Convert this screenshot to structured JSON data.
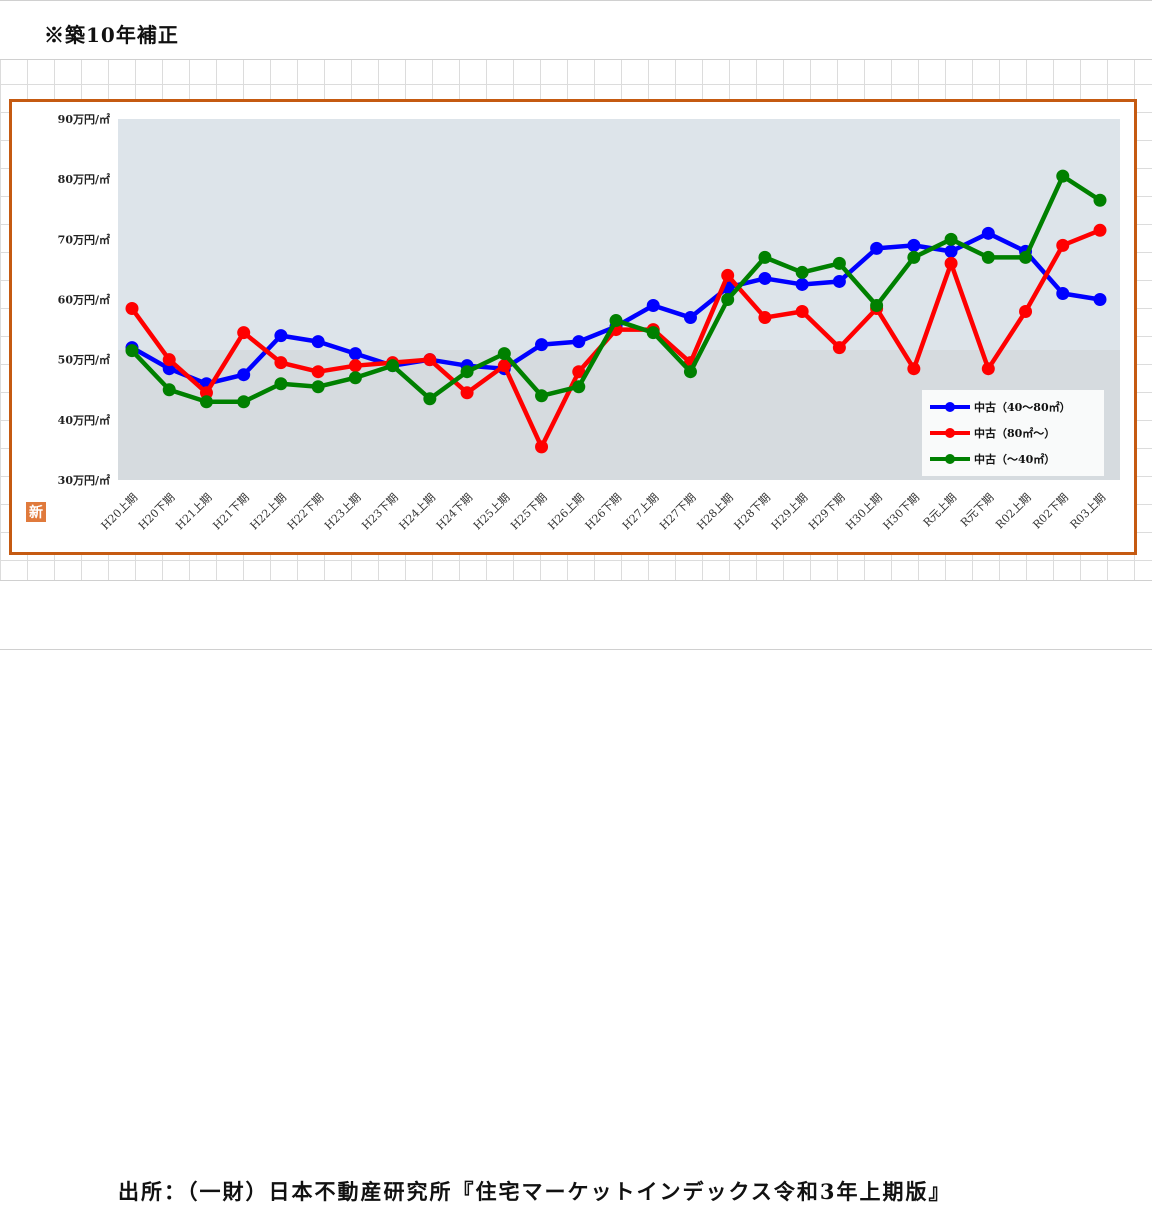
{
  "header": {
    "note": "※築10年補正"
  },
  "footer": {
    "source": "出所：（一財）日本不動産研究所『住宅マーケットインデックス令和3年上期版』"
  },
  "logo": {
    "text": "新"
  },
  "colors": {
    "frame": "#c55a11",
    "plot_bg": "#dde4ea"
  },
  "chart_data": {
    "type": "line",
    "title": "",
    "xlabel": "",
    "ylabel": "",
    "ylim": [
      30,
      90
    ],
    "yticks": [
      30,
      40,
      50,
      60,
      70,
      80,
      90
    ],
    "ytick_labels": [
      "30万円/㎡",
      "40万円/㎡",
      "50万円/㎡",
      "60万円/㎡",
      "70万円/㎡",
      "80万円/㎡",
      "90万円/㎡"
    ],
    "grid": false,
    "legend_position": "bottom-right",
    "categories": [
      "H20上期",
      "H20下期",
      "H21上期",
      "H21下期",
      "H22上期",
      "H22下期",
      "H23上期",
      "H23下期",
      "H24上期",
      "H24下期",
      "H25上期",
      "H25下期",
      "H26上期",
      "H26下期",
      "H27上期",
      "H27下期",
      "H28上期",
      "H28下期",
      "H29上期",
      "H29下期",
      "H30上期",
      "H30下期",
      "R元上期",
      "R元下期",
      "R02上期",
      "R02下期",
      "R03上期"
    ],
    "series": [
      {
        "name": "中古（40～80㎡）",
        "color": "#0000ff",
        "values": [
          52,
          48.5,
          46,
          47.5,
          54,
          53,
          51,
          49,
          50,
          49,
          48.5,
          52.5,
          53,
          55.5,
          59,
          57,
          62,
          63.5,
          62.5,
          63,
          68.5,
          69,
          68,
          71,
          68,
          61,
          60
        ]
      },
      {
        "name": "中古（80㎡～）",
        "color": "#ff0000",
        "values": [
          58.5,
          50,
          44.5,
          54.5,
          49.5,
          48,
          49,
          49.5,
          50,
          44.5,
          49,
          35.5,
          48,
          55,
          55,
          49.5,
          64,
          57,
          58,
          52,
          58.5,
          48.5,
          66,
          48.5,
          58,
          69,
          71.5
        ]
      },
      {
        "name": "中古（～40㎡）",
        "color": "#008000",
        "values": [
          51.5,
          45,
          43,
          43,
          46,
          45.5,
          47,
          49,
          43.5,
          48,
          51,
          44,
          45.5,
          56.5,
          54.5,
          48,
          60,
          67,
          64.5,
          66,
          59,
          67,
          70,
          67,
          67,
          80.5,
          76.5
        ]
      }
    ]
  }
}
